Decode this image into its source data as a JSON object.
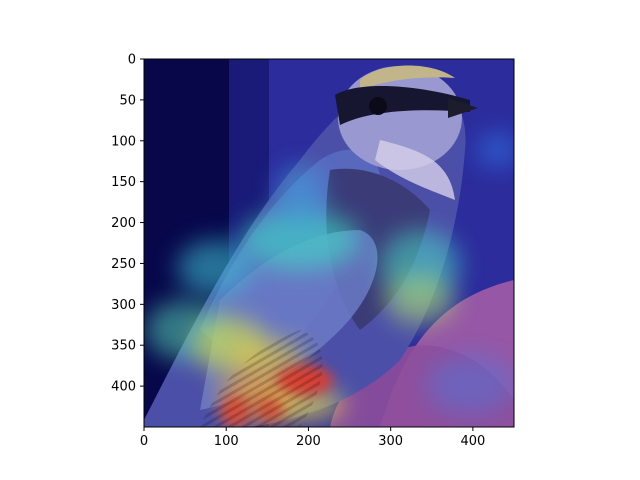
{
  "chart_data": {
    "type": "heatmap",
    "subtype": "image-with-saliency-overlay",
    "title": "",
    "xlabel": "",
    "ylabel": "",
    "xlim": [
      0,
      450
    ],
    "ylim": [
      450,
      0
    ],
    "x_ticks": [
      0,
      100,
      200,
      300,
      400
    ],
    "y_ticks": [
      0,
      50,
      100,
      150,
      200,
      250,
      300,
      350,
      400
    ],
    "grid": false,
    "image_content": "bird",
    "colormap": "jet",
    "colormap_stops": [
      "#00007f",
      "#0000ff",
      "#00bfff",
      "#7fff7f",
      "#ffff00",
      "#ff7f00",
      "#ff0000"
    ],
    "hotspots": [
      {
        "x": 180,
        "y": 395,
        "intensity": 1.0
      },
      {
        "x": 120,
        "y": 390,
        "intensity": 0.9
      },
      {
        "x": 200,
        "y": 385,
        "intensity": 0.85
      },
      {
        "x": 110,
        "y": 345,
        "intensity": 0.7
      },
      {
        "x": 160,
        "y": 355,
        "intensity": 0.7
      },
      {
        "x": 320,
        "y": 280,
        "intensity": 0.55
      },
      {
        "x": 360,
        "y": 250,
        "intensity": 0.5
      },
      {
        "x": 80,
        "y": 250,
        "intensity": 0.45
      },
      {
        "x": 250,
        "y": 250,
        "intensity": 0.45
      },
      {
        "x": 180,
        "y": 240,
        "intensity": 0.4
      },
      {
        "x": 170,
        "y": 160,
        "intensity": 0.3
      },
      {
        "x": 430,
        "y": 115,
        "intensity": 0.25
      },
      {
        "x": 400,
        "y": 380,
        "intensity": 0.3
      }
    ]
  }
}
